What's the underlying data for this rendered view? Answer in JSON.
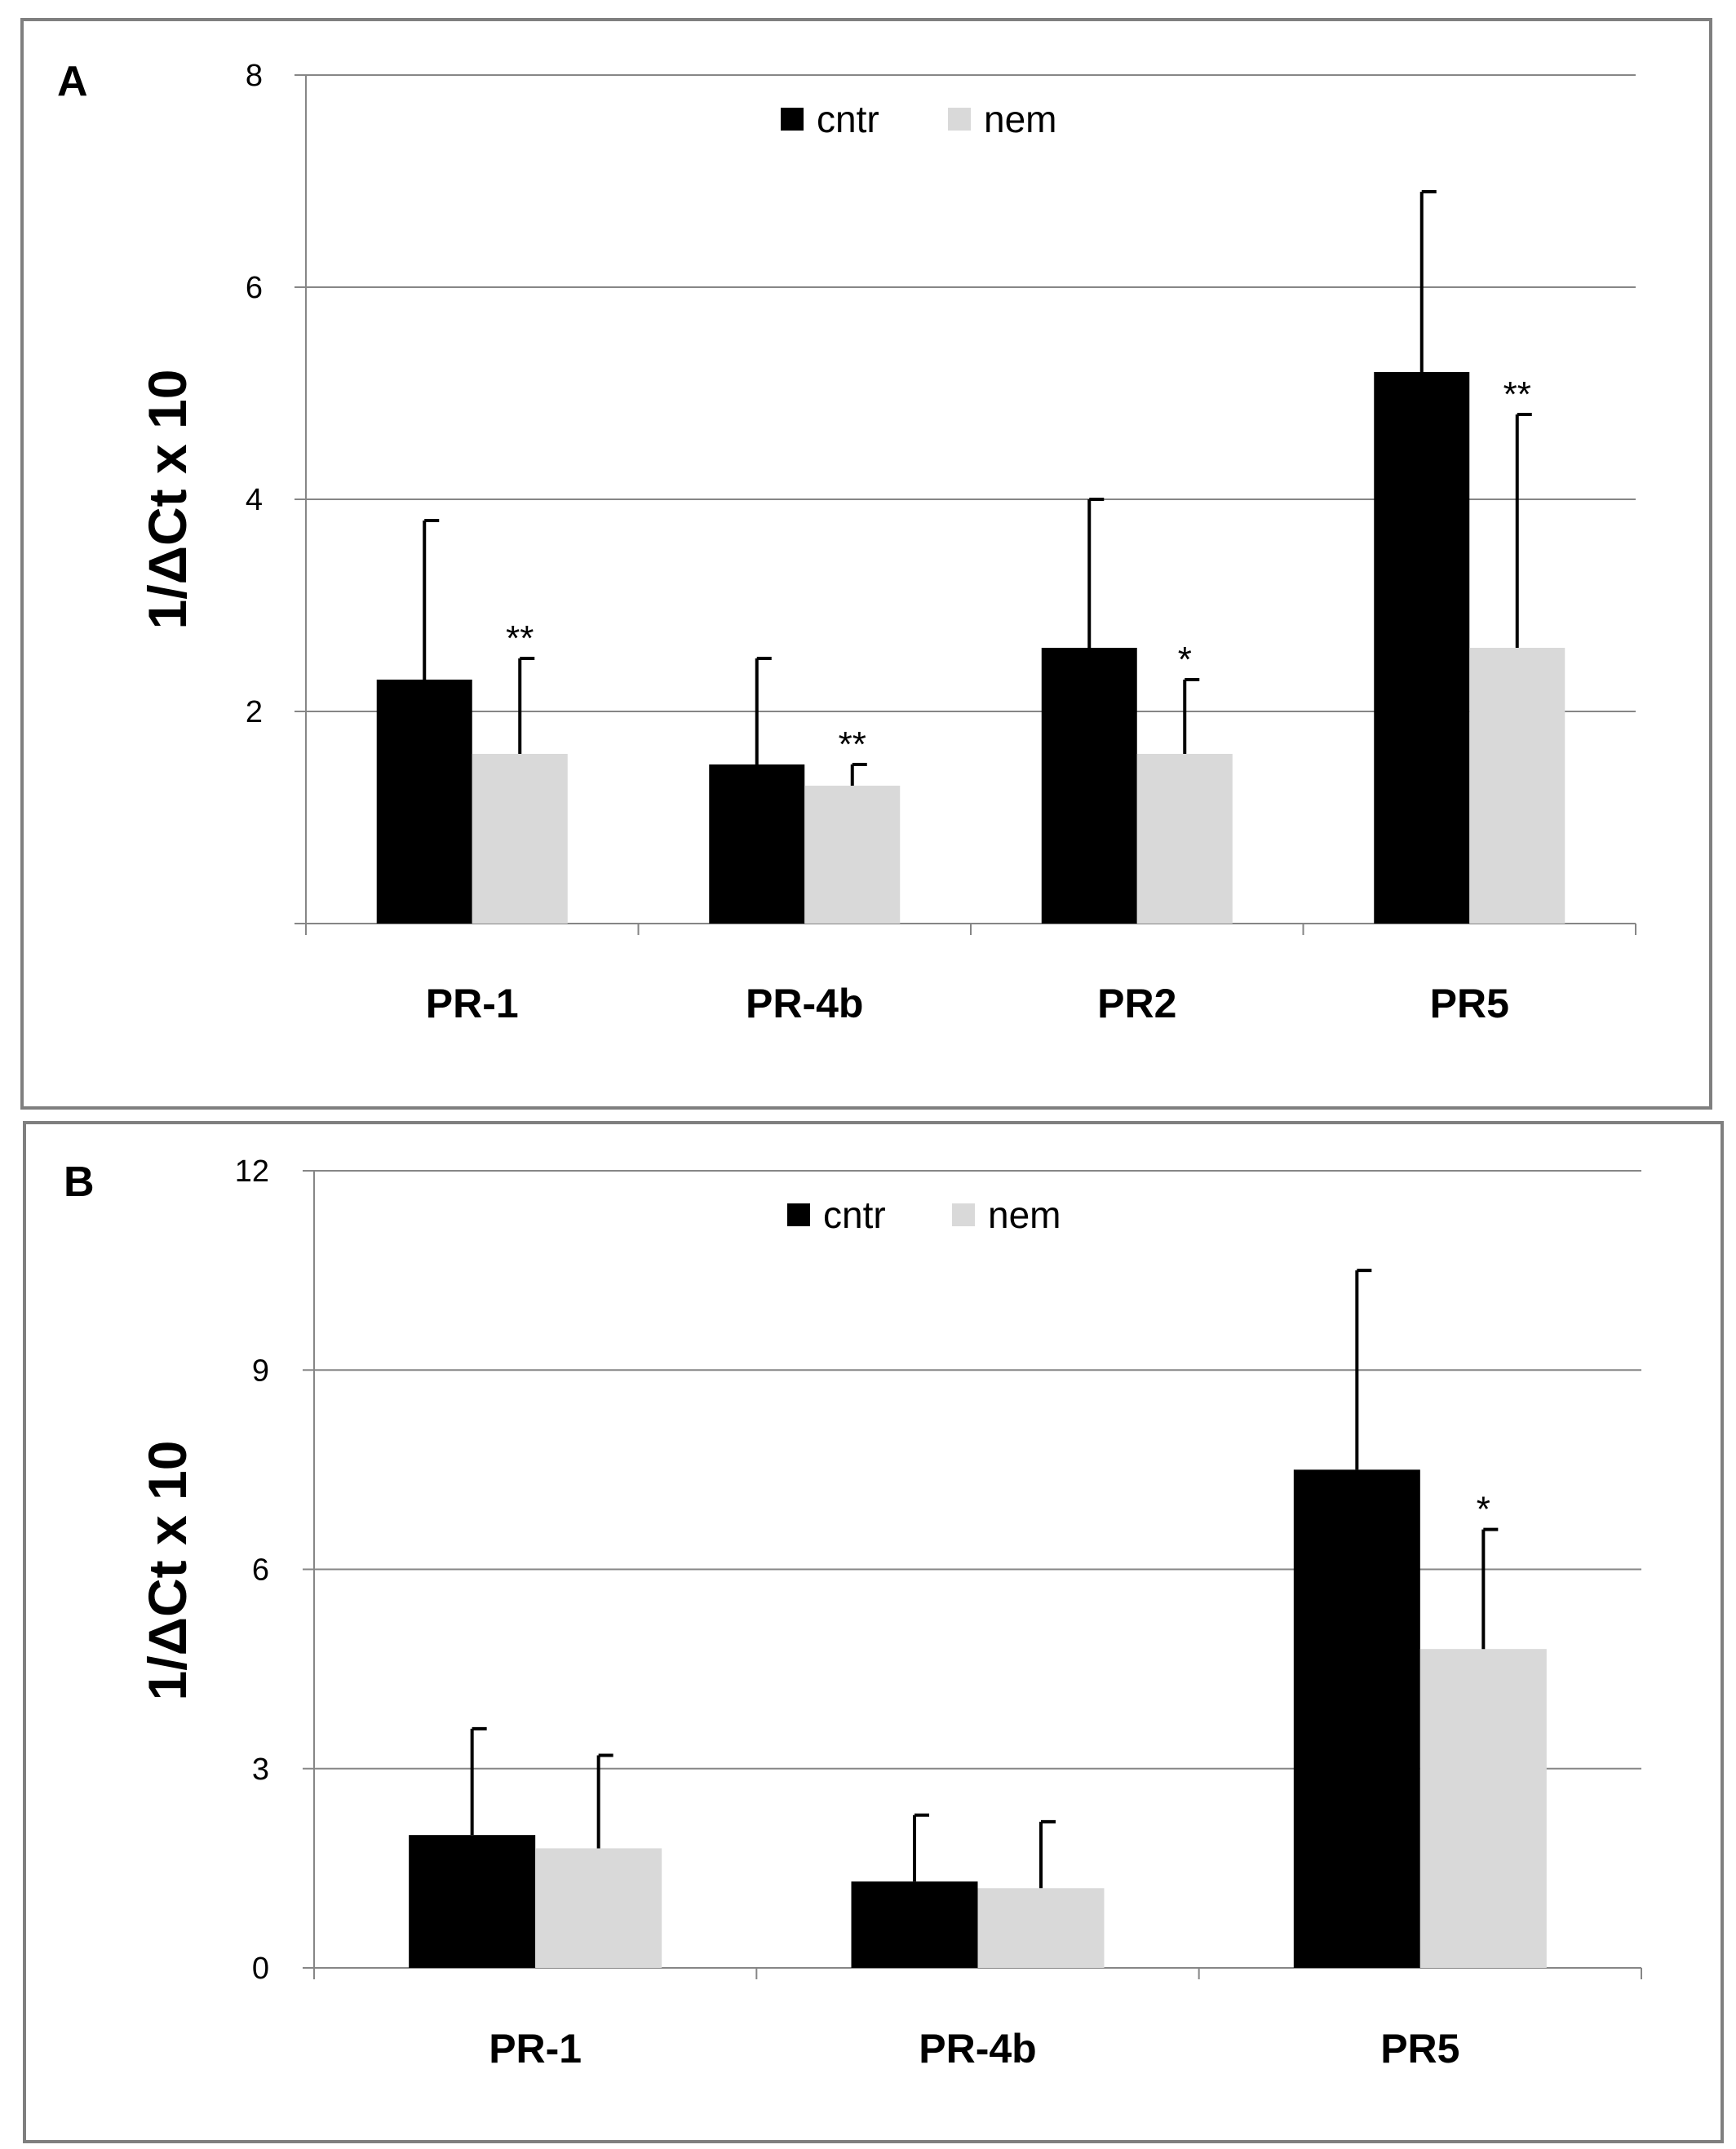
{
  "colors": {
    "cntr": "#000000",
    "nem": "#d9d9d9",
    "grid": "#868686",
    "axis": "#868686"
  },
  "chart_data": [
    {
      "type": "bar",
      "panel": "A",
      "title": "",
      "xlabel": "",
      "ylabel": "1/ΔCt x 10",
      "ylim": [
        0,
        8
      ],
      "yticks": [
        2,
        4,
        6,
        8
      ],
      "ytick_labels": [
        "2",
        "4",
        "6",
        "8"
      ],
      "grid": true,
      "legend": "top-center",
      "categories": [
        "PR-1",
        "PR-4b",
        "PR2",
        "PR5"
      ],
      "series": [
        {
          "name": "cntr",
          "values": [
            2.3,
            1.5,
            2.6,
            5.2
          ],
          "errors": [
            1.5,
            1.0,
            1.4,
            1.7
          ]
        },
        {
          "name": "nem",
          "values": [
            1.6,
            1.3,
            1.6,
            2.6
          ],
          "errors": [
            0.9,
            0.2,
            0.7,
            2.2
          ]
        }
      ],
      "annotations": [
        "**",
        "**",
        "*",
        "**"
      ]
    },
    {
      "type": "bar",
      "panel": "B",
      "title": "",
      "xlabel": "",
      "ylabel": "1/ΔCt x 10",
      "ylim": [
        0,
        12
      ],
      "yticks": [
        0,
        3,
        6,
        9,
        12
      ],
      "ytick_labels": [
        "0",
        "3",
        "6",
        "9",
        "12"
      ],
      "grid": true,
      "legend": "top-center",
      "categories": [
        "PR-1",
        "PR-4b",
        "PR5"
      ],
      "series": [
        {
          "name": "cntr",
          "values": [
            2.0,
            1.3,
            7.5
          ],
          "errors": [
            1.6,
            1.0,
            3.0
          ]
        },
        {
          "name": "nem",
          "values": [
            1.8,
            1.2,
            4.8
          ],
          "errors": [
            1.4,
            1.0,
            1.8
          ]
        }
      ],
      "annotations": [
        "",
        "",
        "*"
      ]
    }
  ]
}
